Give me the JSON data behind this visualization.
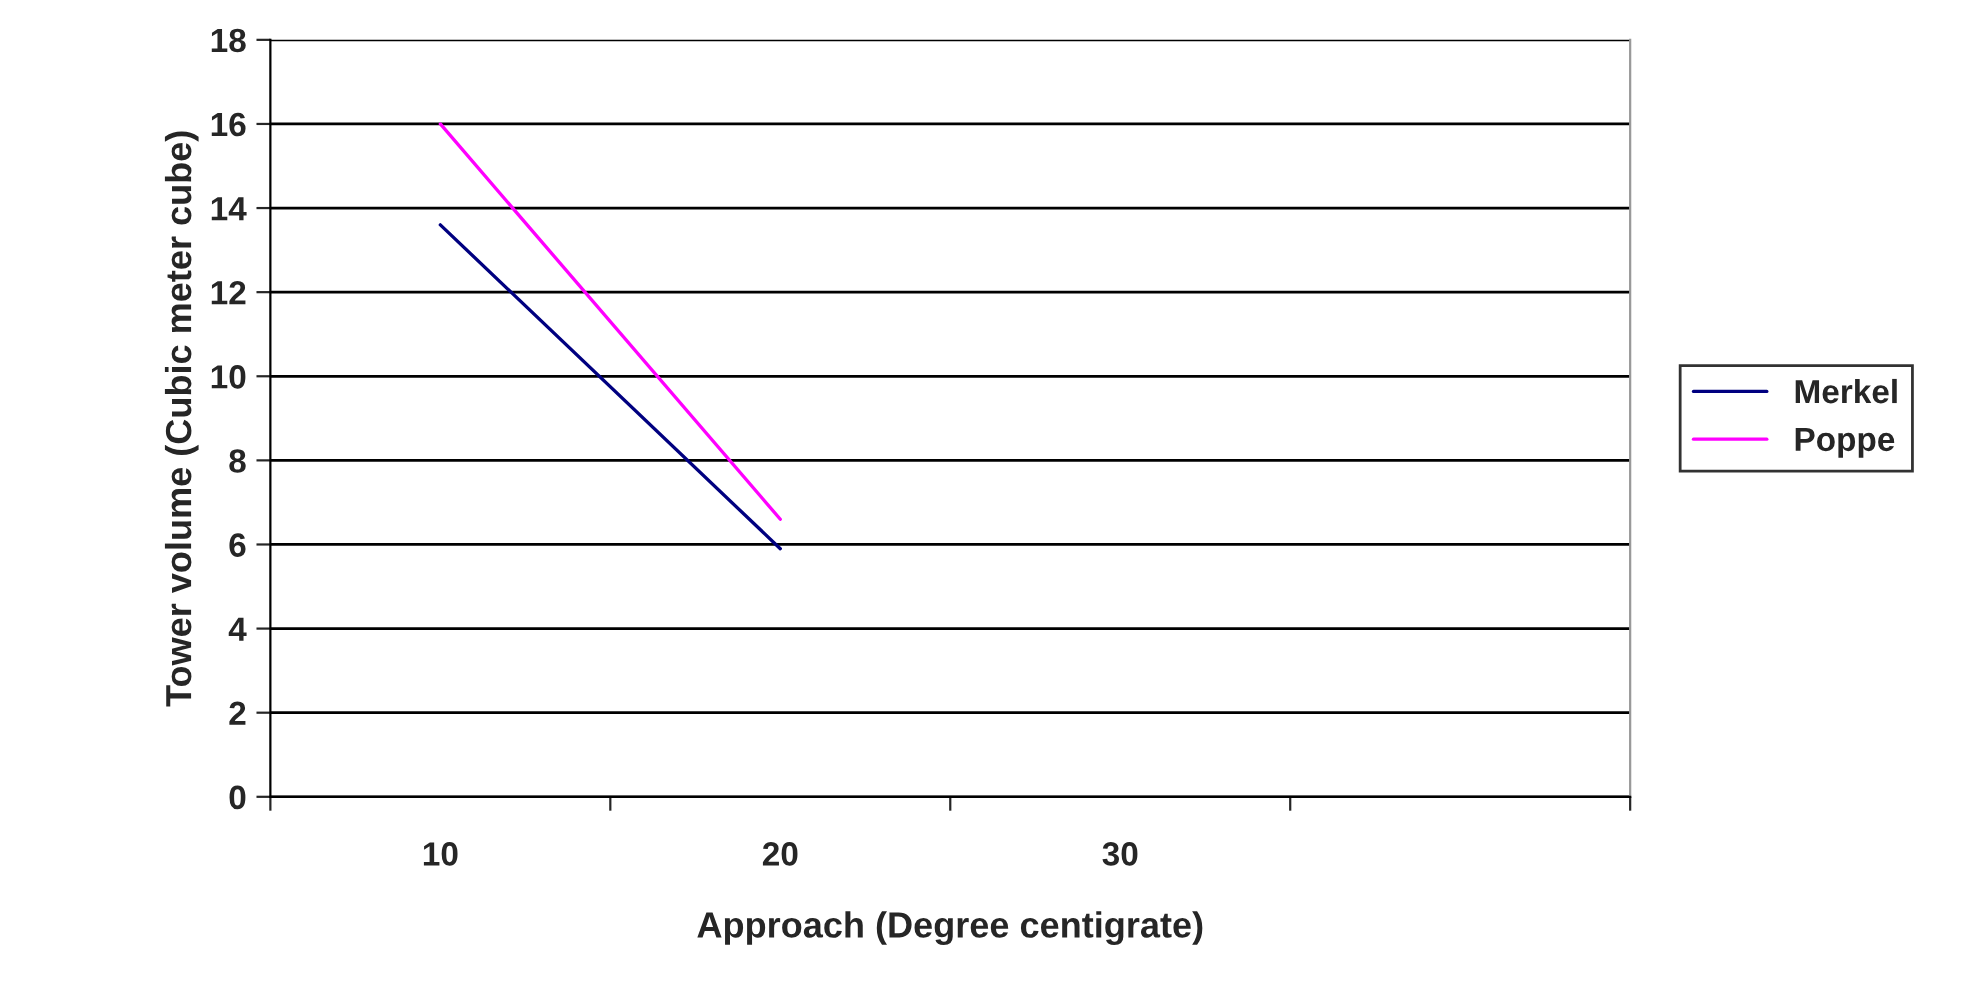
{
  "chart_data": {
    "type": "line",
    "xlabel": "Approach (Degree centigrate)",
    "ylabel": "Tower volume (Cubic meter cube)",
    "categories": [
      "10",
      "20",
      "30",
      null
    ],
    "series": [
      {
        "name": "Merkel",
        "color": "#000080",
        "values": [
          13.6,
          5.9,
          null,
          null
        ]
      },
      {
        "name": "Poppe",
        "color": "#ff00ff",
        "values": [
          16.0,
          6.6,
          null,
          null
        ]
      }
    ],
    "ylim": [
      0,
      18
    ],
    "yticks": [
      0,
      2,
      4,
      6,
      8,
      10,
      12,
      14,
      16,
      18
    ],
    "grid": "y",
    "legend": "right",
    "marker": "none",
    "line_style": "solid"
  }
}
